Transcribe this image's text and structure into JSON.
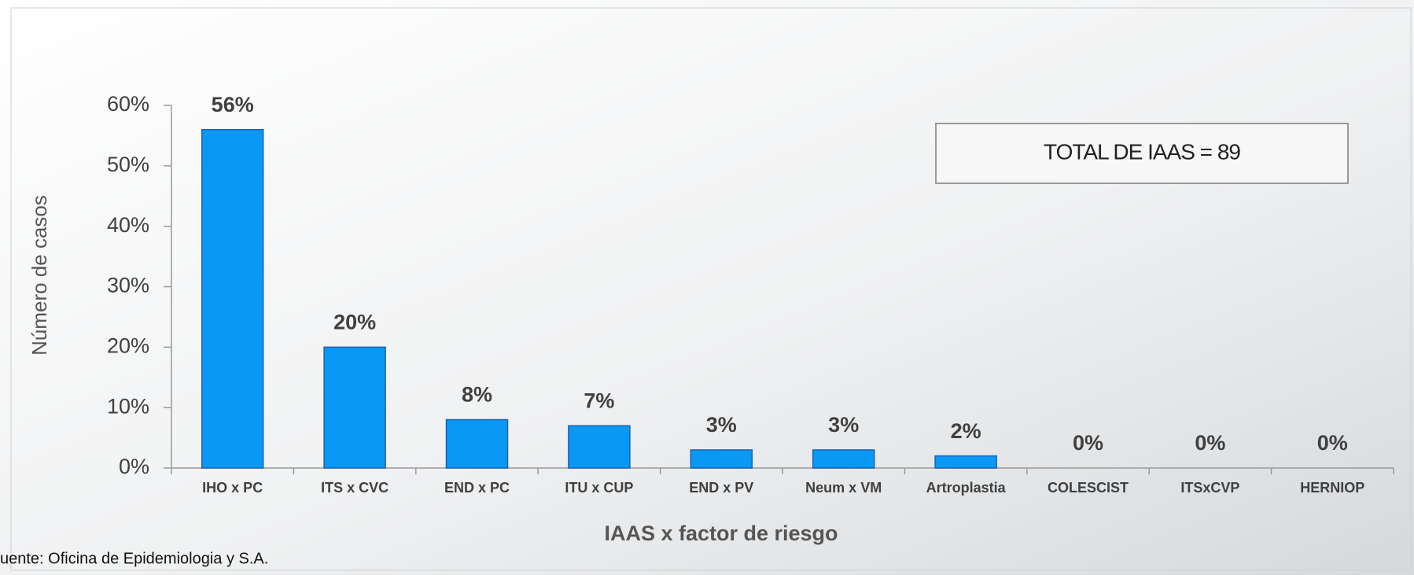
{
  "chart_data": {
    "type": "bar",
    "y_label": "Número de casos",
    "x_label": "IAAS x factor de riesgo",
    "annotation": "TOTAL DE IAAS = 89",
    "source": "uente: Oficina de Epidemiologia y S.A.",
    "categories": [
      "IHO x PC",
      "ITS x CVC",
      "END x PC",
      "ITU x CUP",
      "END x PV",
      "Neum x VM",
      "Artroplastia",
      "COLESCIST",
      "ITSxCVP",
      "HERNIOP"
    ],
    "values": [
      56,
      20,
      8,
      7,
      3,
      3,
      2,
      0,
      0,
      0
    ],
    "value_labels": [
      "56%",
      "20%",
      "8%",
      "7%",
      "3%",
      "3%",
      "2%",
      "0%",
      "0%",
      "0%"
    ],
    "color": "#0a98f5",
    "ylim": [
      0,
      60
    ],
    "yticks": [
      {
        "value": 0,
        "label": "0%"
      },
      {
        "value": 10,
        "label": "10%"
      },
      {
        "value": 20,
        "label": "20%"
      },
      {
        "value": 30,
        "label": "30%"
      },
      {
        "value": 40,
        "label": "40%"
      },
      {
        "value": 50,
        "label": "50%"
      },
      {
        "value": 60,
        "label": "60%"
      }
    ]
  }
}
